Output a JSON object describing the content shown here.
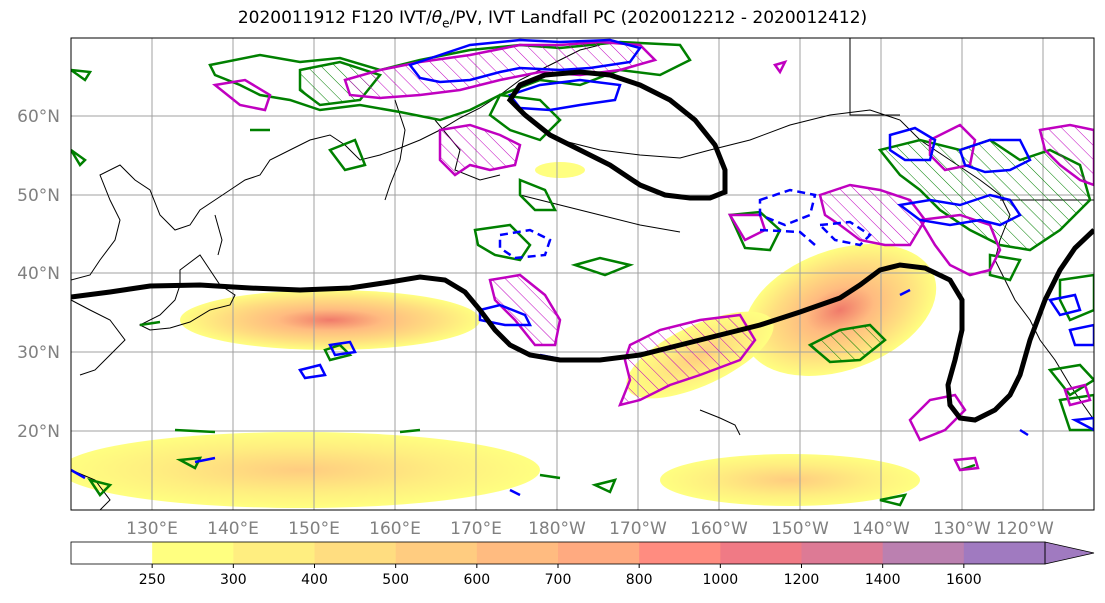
{
  "title": {
    "prefix": "2020011912 F120 IVT/",
    "theta": "θ",
    "theta_sub": "e",
    "suffix": "/PV, IVT Landfall PC (2020012212 - 2020012412)"
  },
  "lat_labels": [
    "60°N",
    "50°N",
    "40°N",
    "30°N",
    "20°N"
  ],
  "lon_labels": [
    "130°E",
    "140°E",
    "150°E",
    "160°E",
    "170°E",
    "180°W",
    "170°W",
    "160°W",
    "150°W",
    "140°W",
    "130°W",
    "120°W"
  ],
  "colorbar": {
    "ticks": [
      "250",
      "300",
      "400",
      "500",
      "600",
      "700",
      "800",
      "1000",
      "1200",
      "1400",
      "1600"
    ],
    "colors": [
      "#ffffff",
      "#ffff80",
      "#ffee80",
      "#ffdd80",
      "#ffcc80",
      "#ffbb80",
      "#ffaa80",
      "#ff8c80",
      "#f07a85",
      "#dd7a95",
      "#bb80b0",
      "#a07ac0"
    ]
  },
  "colors": {
    "ivt_pc_contour": "#000000",
    "theta_e_contour": "#008000",
    "pv_contour": "#0000ff",
    "magenta_contour": "#c000c0"
  }
}
